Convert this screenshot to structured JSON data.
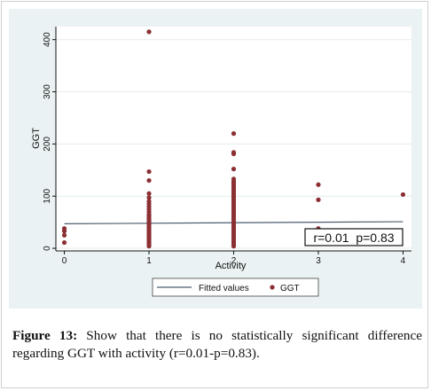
{
  "chart_data": {
    "type": "scatter",
    "title": "",
    "xlabel": "Activity",
    "ylabel": "GGT",
    "xlim": [
      -0.1,
      4.1
    ],
    "ylim": [
      -5,
      425
    ],
    "x_ticks": [
      0,
      1,
      2,
      3,
      4
    ],
    "y_ticks": [
      0,
      100,
      200,
      300,
      400
    ],
    "grid": true,
    "legend_position": "bottom",
    "colors": {
      "points": "#8b2f33",
      "fit_line": "#4a5d6e",
      "background": "#eaf2f3"
    },
    "series": [
      {
        "name": "Fitted values",
        "type": "line",
        "x": [
          0,
          4
        ],
        "y": [
          47,
          51
        ]
      },
      {
        "name": "GGT",
        "type": "scatter",
        "points": [
          [
            0,
            38
          ],
          [
            0,
            33
          ],
          [
            0,
            25
          ],
          [
            0,
            11
          ],
          [
            1,
            415
          ],
          [
            1,
            147
          ],
          [
            1,
            130
          ],
          [
            1,
            105
          ],
          [
            1,
            97
          ],
          [
            1,
            90
          ],
          [
            1,
            85
          ],
          [
            1,
            80
          ],
          [
            1,
            75
          ],
          [
            1,
            70
          ],
          [
            1,
            65
          ],
          [
            1,
            62
          ],
          [
            1,
            58
          ],
          [
            1,
            55
          ],
          [
            1,
            52
          ],
          [
            1,
            49
          ],
          [
            1,
            46
          ],
          [
            1,
            43
          ],
          [
            1,
            40
          ],
          [
            1,
            37
          ],
          [
            1,
            34
          ],
          [
            1,
            31
          ],
          [
            1,
            28
          ],
          [
            1,
            25
          ],
          [
            1,
            22
          ],
          [
            1,
            19
          ],
          [
            1,
            16
          ],
          [
            1,
            13
          ],
          [
            1,
            10
          ],
          [
            1,
            7
          ],
          [
            1,
            4
          ],
          [
            2,
            220
          ],
          [
            2,
            184
          ],
          [
            2,
            181
          ],
          [
            2,
            152
          ],
          [
            2,
            133
          ],
          [
            2,
            128
          ],
          [
            2,
            124
          ],
          [
            2,
            120
          ],
          [
            2,
            116
          ],
          [
            2,
            112
          ],
          [
            2,
            108
          ],
          [
            2,
            104
          ],
          [
            2,
            100
          ],
          [
            2,
            96
          ],
          [
            2,
            92
          ],
          [
            2,
            88
          ],
          [
            2,
            84
          ],
          [
            2,
            80
          ],
          [
            2,
            76
          ],
          [
            2,
            72
          ],
          [
            2,
            68
          ],
          [
            2,
            64
          ],
          [
            2,
            60
          ],
          [
            2,
            56
          ],
          [
            2,
            52
          ],
          [
            2,
            48
          ],
          [
            2,
            44
          ],
          [
            2,
            40
          ],
          [
            2,
            36
          ],
          [
            2,
            32
          ],
          [
            2,
            28
          ],
          [
            2,
            24
          ],
          [
            2,
            20
          ],
          [
            2,
            16
          ],
          [
            2,
            12
          ],
          [
            2,
            8
          ],
          [
            2,
            4
          ],
          [
            3,
            122
          ],
          [
            3,
            93
          ],
          [
            3,
            38
          ],
          [
            3,
            27
          ],
          [
            4,
            103
          ]
        ]
      }
    ],
    "annotation": "r=0.01  p=0.83"
  },
  "caption": {
    "label": "Figure 13:",
    "text": " Show that there is no statistically significant difference regarding GGT with activity (r=0.01-p=0.83)."
  }
}
